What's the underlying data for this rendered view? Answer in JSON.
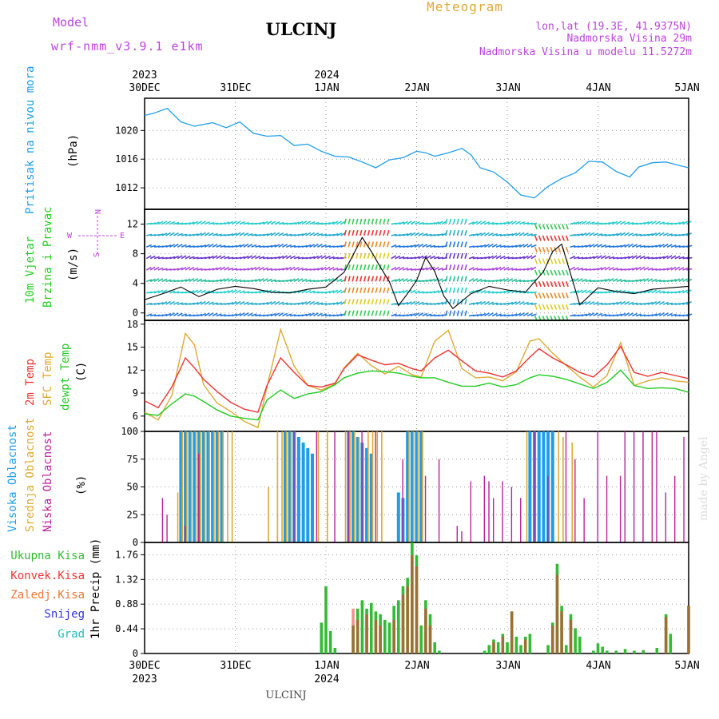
{
  "header": {
    "model_label": "Model",
    "model_name": "wrf-nmm_v3.9.1 e1km",
    "station": "ULCINJ",
    "meteogram": "Meteogram",
    "lonlat": "lon,lat (19.3E, 41.9375N)",
    "elev": "Nadmorska Visina 29m",
    "elev_model": "Nadmorska Visina u modelu 11.5272m",
    "footer_station": "ULCINJ",
    "watermark": "made by Angel"
  },
  "colors": {
    "pressure": "#1e9ee8",
    "wind_label": "#22cc22",
    "temp2m": "#ee3333",
    "sfc": "#ddaa33",
    "dewpt": "#22cc22",
    "high_cloud": "#1e9ee8",
    "mid_cloud": "#ddaa33",
    "low_cloud": "#bb2299",
    "total": "#33bb33",
    "conv": "#ee3333",
    "frozen": "#ee7733",
    "snow": "#3333dd",
    "graupel": "#22bbbb",
    "meta": "#bb44dd"
  },
  "axes": {
    "top_year_left": "2023",
    "top_year_mid": "2024",
    "bottom_year_left": "2023",
    "bottom_year_mid": "2024",
    "dates": [
      "30DEC",
      "31DEC",
      "1JAN",
      "2JAN",
      "3JAN",
      "4JAN",
      "5JAN"
    ]
  },
  "wind_compass": {
    "n": "N",
    "w": "W",
    "e": "E",
    "s": "S"
  },
  "chart_data": [
    {
      "type": "line",
      "panel": "pressure",
      "ylabel": "(hPa)",
      "side_label": "Pritisak na nivou mora",
      "yticks": [
        1012,
        1016,
        1020
      ],
      "ylim": [
        1009,
        1024.5
      ],
      "x_days": [
        0,
        0.1,
        0.25,
        0.4,
        0.55,
        0.75,
        0.9,
        1.05,
        1.2,
        1.35,
        1.5,
        1.65,
        1.8,
        1.95,
        2.1,
        2.25,
        2.4,
        2.55,
        2.7,
        2.85,
        3.0,
        3.1,
        3.2,
        3.35,
        3.5,
        3.6,
        3.7,
        3.85,
        4.0,
        4.15,
        4.3,
        4.45,
        4.6,
        4.75,
        4.9,
        5.05,
        5.2,
        5.35,
        5.45,
        5.6,
        5.75,
        5.9,
        6.0
      ],
      "values": [
        1022.1,
        1022.4,
        1023.1,
        1021.2,
        1020.6,
        1021.1,
        1020.4,
        1021.2,
        1019.6,
        1019.2,
        1019.3,
        1017.9,
        1018.1,
        1017.1,
        1016.4,
        1016.3,
        1015.6,
        1014.8,
        1015.9,
        1016.2,
        1017.1,
        1016.9,
        1016.4,
        1016.9,
        1017.5,
        1016.6,
        1014.8,
        1014.2,
        1012.8,
        1011.0,
        1010.6,
        1012.2,
        1013.3,
        1014.1,
        1015.7,
        1015.6,
        1014.3,
        1013.5,
        1014.9,
        1015.5,
        1015.6,
        1015.1,
        1014.8
      ],
      "grid": true
    },
    {
      "type": "line",
      "panel": "wind",
      "ylabel": "(m/s)",
      "side_label_1": "10m Vjetar",
      "side_label_2": "Brzina i Pravac",
      "yticks": [
        0,
        4,
        8,
        12
      ],
      "ylim": [
        -1,
        14
      ],
      "x_days": [
        0,
        0.2,
        0.4,
        0.6,
        0.8,
        1.0,
        1.2,
        1.4,
        1.6,
        1.8,
        2.0,
        2.2,
        2.4,
        2.5,
        2.6,
        2.7,
        2.8,
        2.9,
        3.0,
        3.1,
        3.2,
        3.3,
        3.4,
        3.6,
        3.8,
        4.0,
        4.2,
        4.4,
        4.5,
        4.6,
        4.8,
        5.0,
        5.2,
        5.4,
        5.6,
        5.8,
        6.0
      ],
      "series": [
        {
          "values": [
            1.8,
            2.6,
            3.5,
            2.2,
            3.2,
            3.6,
            3.3,
            2.8,
            2.7,
            3.2,
            3.5,
            5.5,
            10.2,
            8.3,
            6.2,
            4.2,
            1.0,
            2.6,
            4.4,
            7.5,
            5.6,
            2.3,
            0.6,
            2.6,
            3.6,
            3.1,
            2.8,
            5.6,
            8.3,
            9.3,
            1.1,
            3.4,
            2.9,
            2.6,
            3.2,
            3.4,
            3.6
          ]
        }
      ],
      "grid": true
    },
    {
      "type": "line",
      "panel": "temperature",
      "ylabel": "(C)",
      "side_label_1": "2m Temp",
      "side_label_2": "SFC Temp",
      "side_label_3": "dewpt Temp",
      "yticks": [
        6,
        9,
        12,
        15,
        18
      ],
      "ylim": [
        4,
        18.5
      ],
      "x_days": [
        0,
        0.15,
        0.3,
        0.45,
        0.55,
        0.65,
        0.8,
        0.95,
        1.1,
        1.25,
        1.35,
        1.5,
        1.65,
        1.8,
        1.95,
        2.1,
        2.2,
        2.35,
        2.5,
        2.65,
        2.8,
        2.95,
        3.05,
        3.2,
        3.35,
        3.5,
        3.65,
        3.8,
        3.95,
        4.1,
        4.25,
        4.35,
        4.5,
        4.65,
        4.8,
        4.95,
        5.1,
        5.25,
        5.4,
        5.55,
        5.7,
        5.85,
        6.0
      ],
      "series": [
        {
          "name": "2m",
          "values": [
            8.0,
            7.1,
            9.8,
            13.6,
            12.3,
            10.8,
            9.2,
            7.8,
            6.9,
            6.5,
            10.0,
            13.6,
            11.7,
            10.0,
            9.8,
            10.3,
            12.2,
            14.0,
            13.3,
            12.7,
            12.9,
            12.2,
            11.9,
            13.6,
            14.6,
            13.2,
            11.9,
            11.6,
            11.1,
            11.9,
            13.7,
            14.8,
            13.6,
            12.7,
            11.7,
            11.1,
            12.7,
            15.1,
            11.7,
            11.2,
            11.7,
            11.3,
            10.9
          ]
        },
        {
          "name": "SFC",
          "values": [
            6.5,
            5.5,
            8.7,
            16.8,
            15.3,
            10.1,
            7.7,
            6.6,
            5.3,
            4.5,
            9.8,
            17.3,
            12.5,
            10.0,
            9.4,
            10.2,
            12.3,
            14.2,
            12.6,
            11.5,
            12.5,
            11.4,
            11.1,
            15.8,
            17.2,
            12.2,
            11.0,
            11.1,
            10.6,
            11.8,
            15.8,
            16.1,
            14.2,
            12.6,
            11.1,
            9.8,
            11.3,
            15.6,
            10.0,
            10.6,
            11.0,
            10.6,
            10.4
          ]
        },
        {
          "name": "dewpt",
          "values": [
            6.3,
            6.1,
            7.6,
            8.9,
            8.6,
            7.9,
            6.8,
            6.0,
            5.7,
            5.5,
            8.1,
            9.4,
            8.3,
            8.9,
            9.2,
            10.1,
            11.0,
            11.6,
            11.9,
            11.8,
            11.6,
            11.2,
            11.0,
            11.0,
            10.4,
            9.9,
            9.9,
            10.3,
            9.8,
            10.1,
            11.0,
            11.4,
            11.2,
            10.8,
            10.2,
            9.6,
            10.4,
            12.0,
            10.0,
            9.6,
            9.7,
            9.6,
            9.1
          ]
        }
      ],
      "grid": true
    },
    {
      "type": "bar",
      "panel": "clouds",
      "ylabel": "(%)",
      "side_label_1": "Visoka Oblacnost",
      "side_label_2": "Srednja Oblacnost",
      "side_label_3": "Niska Oblacnost",
      "yticks": [
        0,
        25,
        50,
        75,
        100
      ],
      "ylim": [
        0,
        100
      ],
      "high": {
        "x_days": [
          0.4,
          0.45,
          0.5,
          0.55,
          0.6,
          0.65,
          0.7,
          0.75,
          0.8,
          0.85,
          1.55,
          1.6,
          1.65,
          1.7,
          1.75,
          1.8,
          1.85,
          2.25,
          2.3,
          2.35,
          2.4,
          2.45,
          2.5,
          2.8,
          2.85,
          2.9,
          2.95,
          3.0,
          3.05,
          4.25,
          4.3,
          4.35,
          4.4,
          4.45,
          4.5
        ],
        "values": [
          100,
          100,
          100,
          100,
          100,
          100,
          100,
          100,
          100,
          100,
          100,
          100,
          100,
          95,
          90,
          85,
          80,
          100,
          100,
          95,
          90,
          85,
          80,
          45,
          40,
          100,
          100,
          100,
          100,
          100,
          100,
          100,
          100,
          100,
          100
        ]
      },
      "mid": {
        "x_days": [
          0.35,
          0.4,
          0.45,
          0.5,
          0.55,
          0.6,
          0.65,
          0.7,
          0.75,
          0.8,
          0.85,
          0.9,
          0.95,
          1.35,
          1.45,
          1.5,
          1.55,
          1.6,
          1.9,
          2.0,
          2.2,
          2.25,
          2.3,
          2.35,
          2.45,
          2.5,
          2.55,
          2.6,
          2.9,
          2.95,
          3.0,
          3.05,
          4.2,
          4.55,
          4.6,
          4.7
        ],
        "values": [
          45,
          100,
          100,
          100,
          100,
          100,
          100,
          100,
          100,
          100,
          100,
          100,
          100,
          50,
          100,
          100,
          100,
          100,
          100,
          100,
          100,
          100,
          100,
          95,
          100,
          100,
          100,
          100,
          100,
          100,
          100,
          100,
          100,
          100,
          95,
          90
        ]
      },
      "low": {
        "x_days": [
          0.2,
          0.25,
          0.45,
          0.6,
          1.65,
          1.9,
          2.1,
          2.25,
          2.4,
          2.55,
          2.85,
          3.1,
          3.25,
          3.45,
          3.5,
          3.6,
          3.75,
          3.8,
          3.85,
          3.95,
          4.05,
          4.15,
          4.3,
          4.45,
          4.65,
          4.75,
          4.85,
          5.0,
          5.1,
          5.25,
          5.3,
          5.4,
          5.5,
          5.6,
          5.65,
          5.75,
          5.85,
          5.95
        ],
        "values": [
          40,
          25,
          15,
          80,
          100,
          100,
          100,
          100,
          100,
          100,
          75,
          60,
          75,
          15,
          10,
          55,
          60,
          55,
          40,
          55,
          50,
          40,
          100,
          60,
          100,
          75,
          40,
          100,
          60,
          60,
          100,
          100,
          100,
          100,
          100,
          45,
          60,
          95
        ]
      },
      "grid": true
    },
    {
      "type": "bar",
      "panel": "precip",
      "ylabel": "1hr Precip (mm)",
      "side_label_1": "Ukupna Kisa",
      "side_label_2": "Konvek.Kisa",
      "side_label_3": "Zaledj.Kisa",
      "side_label_4": "Snijeg",
      "side_label_5": "Grad",
      "yticks": [
        0,
        0.44,
        0.88,
        1.32,
        1.76
      ],
      "ylim": [
        0,
        1.98
      ],
      "total": {
        "x_days": [
          1.95,
          2.0,
          2.05,
          2.1,
          2.3,
          2.35,
          2.4,
          2.45,
          2.5,
          2.55,
          2.6,
          2.65,
          2.7,
          2.75,
          2.8,
          2.85,
          2.9,
          2.95,
          3.0,
          3.05,
          3.1,
          3.15,
          3.2,
          3.25,
          3.75,
          3.8,
          3.85,
          3.9,
          3.95,
          4.0,
          4.05,
          4.1,
          4.15,
          4.2,
          4.25,
          4.45,
          4.5,
          4.55,
          4.6,
          4.65,
          4.7,
          4.75,
          4.8,
          4.95,
          5.0,
          5.05,
          5.1,
          5.2,
          5.3,
          5.4,
          5.5,
          5.65,
          5.75,
          5.8,
          6.0
        ],
        "values": [
          0.55,
          1.2,
          0.4,
          0.1,
          0.5,
          0.8,
          0.95,
          0.8,
          0.9,
          0.75,
          0.7,
          0.6,
          0.55,
          0.85,
          0.95,
          1.2,
          1.35,
          1.98,
          1.75,
          0.5,
          0.95,
          0.7,
          0.2,
          0.05,
          0.05,
          0.15,
          0.25,
          0.2,
          0.35,
          0.2,
          0.75,
          0.3,
          0.15,
          0.3,
          0.35,
          0.15,
          0.55,
          1.6,
          0.85,
          0.15,
          0.7,
          0.45,
          0.3,
          0.05,
          0.18,
          0.12,
          0.05,
          0.05,
          0.08,
          0.05,
          0.06,
          0.1,
          0.7,
          0.35,
          0.85
        ]
      },
      "conv": {
        "x_days": [
          2.3,
          2.35,
          2.45,
          2.55,
          2.6,
          2.75,
          2.85,
          2.9,
          2.95,
          3.0,
          3.1,
          3.15,
          3.85,
          3.95,
          4.05,
          4.2,
          4.5,
          4.55,
          4.6,
          4.7,
          5.75,
          6.0
        ],
        "values": [
          0.8,
          0.6,
          0.7,
          0.6,
          0.5,
          0.6,
          1.05,
          1.2,
          1.75,
          1.55,
          0.8,
          0.5,
          0.2,
          0.3,
          0.75,
          0.25,
          0.5,
          1.4,
          0.75,
          0.6,
          0.65,
          0.85
        ]
      },
      "grid": true
    }
  ]
}
